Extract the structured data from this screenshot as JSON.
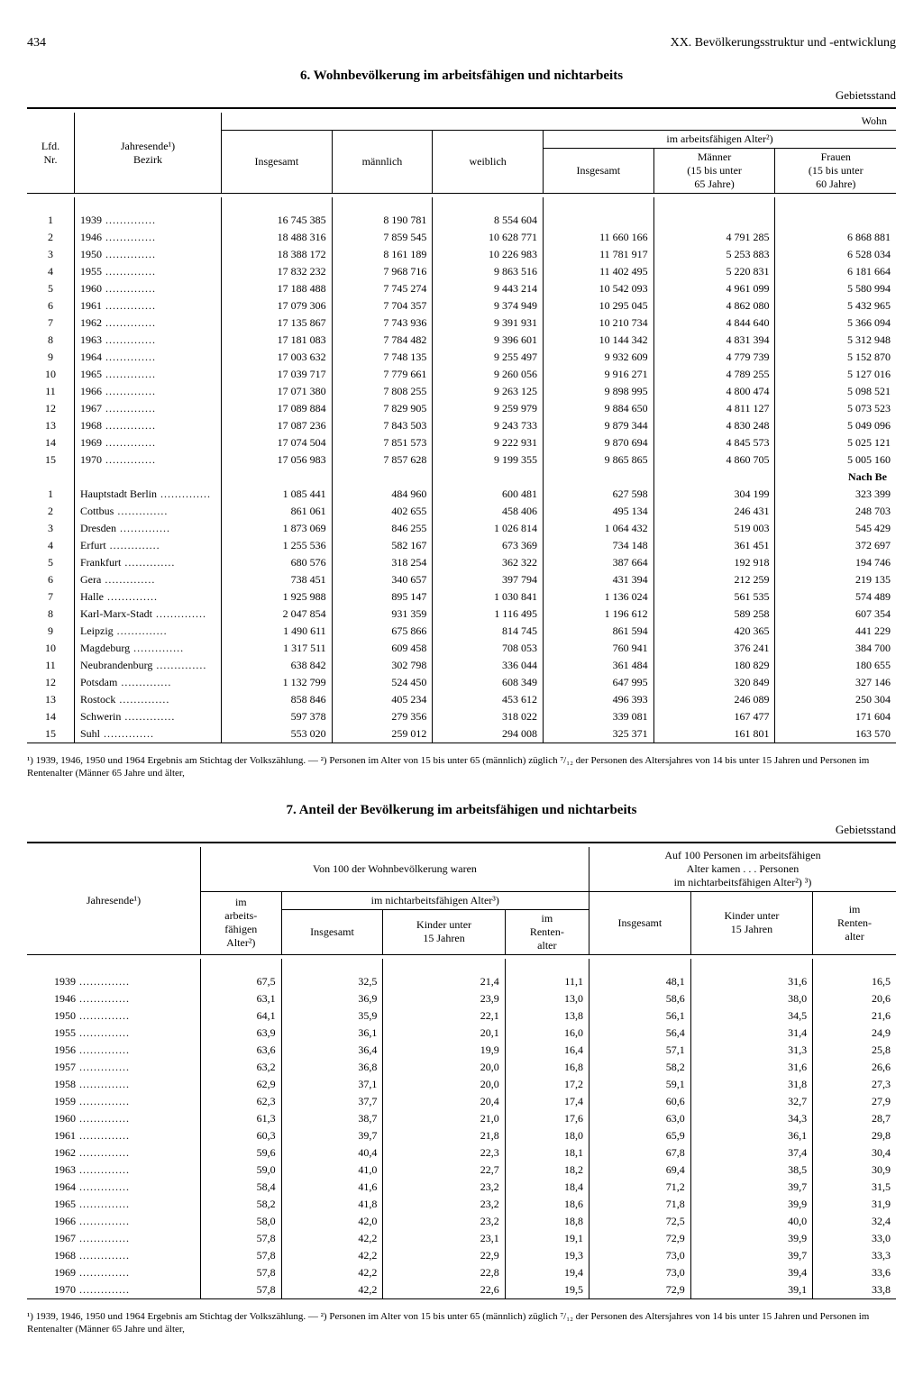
{
  "page": {
    "number": "434",
    "chapter": "XX. Bevölkerungsstruktur und -entwicklung"
  },
  "table6": {
    "title": "6. Wohnbevölkerung im arbeitsfähigen und nichtarbeits",
    "subtitle": "Gebietsstand",
    "corner_right": "Wohn",
    "headers": {
      "lfd": "Lfd.\nNr.",
      "jahr": "Jahresende¹)\nBezirk",
      "insgesamt": "Insgesamt",
      "maennlich": "männlich",
      "weiblich": "weiblich",
      "group": "im arbeitsfähigen Alter²)",
      "g_insgesamt": "Insgesamt",
      "g_maenner": "Männer\n(15 bis unter\n65 Jahre)",
      "g_frauen": "Frauen\n(15 bis unter\n60 Jahre)"
    },
    "years": [
      {
        "n": "1",
        "y": "1939",
        "c1": "16 745 385",
        "c2": "8 190 781",
        "c3": "8 554 604",
        "c4": "",
        "c5": "",
        "c6": ""
      },
      {
        "n": "2",
        "y": "1946",
        "c1": "18 488 316",
        "c2": "7 859 545",
        "c3": "10 628 771",
        "c4": "11 660 166",
        "c5": "4 791 285",
        "c6": "6 868 881"
      },
      {
        "n": "3",
        "y": "1950",
        "c1": "18 388 172",
        "c2": "8 161 189",
        "c3": "10 226 983",
        "c4": "11 781 917",
        "c5": "5 253 883",
        "c6": "6 528 034"
      },
      {
        "n": "4",
        "y": "1955",
        "c1": "17 832 232",
        "c2": "7 968 716",
        "c3": "9 863 516",
        "c4": "11 402 495",
        "c5": "5 220 831",
        "c6": "6 181 664"
      },
      {
        "n": "5",
        "y": "1960",
        "c1": "17 188 488",
        "c2": "7 745 274",
        "c3": "9 443 214",
        "c4": "10 542 093",
        "c5": "4 961 099",
        "c6": "5 580 994"
      },
      {
        "n": "6",
        "y": "1961",
        "c1": "17 079 306",
        "c2": "7 704 357",
        "c3": "9 374 949",
        "c4": "10 295 045",
        "c5": "4 862 080",
        "c6": "5 432 965"
      },
      {
        "n": "7",
        "y": "1962",
        "c1": "17 135 867",
        "c2": "7 743 936",
        "c3": "9 391 931",
        "c4": "10 210 734",
        "c5": "4 844 640",
        "c6": "5 366 094"
      },
      {
        "n": "8",
        "y": "1963",
        "c1": "17 181 083",
        "c2": "7 784 482",
        "c3": "9 396 601",
        "c4": "10 144 342",
        "c5": "4 831 394",
        "c6": "5 312 948"
      },
      {
        "n": "9",
        "y": "1964",
        "c1": "17 003 632",
        "c2": "7 748 135",
        "c3": "9 255 497",
        "c4": "9 932 609",
        "c5": "4 779 739",
        "c6": "5 152 870"
      },
      {
        "n": "10",
        "y": "1965",
        "c1": "17 039 717",
        "c2": "7 779 661",
        "c3": "9 260 056",
        "c4": "9 916 271",
        "c5": "4 789 255",
        "c6": "5 127 016"
      },
      {
        "n": "11",
        "y": "1966",
        "c1": "17 071 380",
        "c2": "7 808 255",
        "c3": "9 263 125",
        "c4": "9 898 995",
        "c5": "4 800 474",
        "c6": "5 098 521"
      },
      {
        "n": "12",
        "y": "1967",
        "c1": "17 089 884",
        "c2": "7 829 905",
        "c3": "9 259 979",
        "c4": "9 884 650",
        "c5": "4 811 127",
        "c6": "5 073 523"
      },
      {
        "n": "13",
        "y": "1968",
        "c1": "17 087 236",
        "c2": "7 843 503",
        "c3": "9 243 733",
        "c4": "9 879 344",
        "c5": "4 830 248",
        "c6": "5 049 096"
      },
      {
        "n": "14",
        "y": "1969",
        "c1": "17 074 504",
        "c2": "7 851 573",
        "c3": "9 222 931",
        "c4": "9 870 694",
        "c5": "4 845 573",
        "c6": "5 025 121"
      },
      {
        "n": "15",
        "y": "1970",
        "c1": "17 056 983",
        "c2": "7 857 628",
        "c3": "9 199 355",
        "c4": "9 865 865",
        "c5": "4 860 705",
        "c6": "5 005 160"
      }
    ],
    "section2_label": "Nach Be",
    "bezirke": [
      {
        "n": "1",
        "y": "Hauptstadt Berlin",
        "c1": "1 085 441",
        "c2": "484 960",
        "c3": "600 481",
        "c4": "627 598",
        "c5": "304 199",
        "c6": "323 399"
      },
      {
        "n": "2",
        "y": "Cottbus",
        "c1": "861 061",
        "c2": "402 655",
        "c3": "458 406",
        "c4": "495 134",
        "c5": "246 431",
        "c6": "248 703"
      },
      {
        "n": "3",
        "y": "Dresden",
        "c1": "1 873 069",
        "c2": "846 255",
        "c3": "1 026 814",
        "c4": "1 064 432",
        "c5": "519 003",
        "c6": "545 429"
      },
      {
        "n": "4",
        "y": "Erfurt",
        "c1": "1 255 536",
        "c2": "582 167",
        "c3": "673 369",
        "c4": "734 148",
        "c5": "361 451",
        "c6": "372 697"
      },
      {
        "n": "5",
        "y": "Frankfurt",
        "c1": "680 576",
        "c2": "318 254",
        "c3": "362 322",
        "c4": "387 664",
        "c5": "192 918",
        "c6": "194 746"
      },
      {
        "n": "6",
        "y": "Gera",
        "c1": "738 451",
        "c2": "340 657",
        "c3": "397 794",
        "c4": "431 394",
        "c5": "212 259",
        "c6": "219 135"
      },
      {
        "n": "7",
        "y": "Halle",
        "c1": "1 925 988",
        "c2": "895 147",
        "c3": "1 030 841",
        "c4": "1 136 024",
        "c5": "561 535",
        "c6": "574 489"
      },
      {
        "n": "8",
        "y": "Karl-Marx-Stadt",
        "c1": "2 047 854",
        "c2": "931 359",
        "c3": "1 116 495",
        "c4": "1 196 612",
        "c5": "589 258",
        "c6": "607 354"
      },
      {
        "n": "9",
        "y": "Leipzig",
        "c1": "1 490 611",
        "c2": "675 866",
        "c3": "814 745",
        "c4": "861 594",
        "c5": "420 365",
        "c6": "441 229"
      },
      {
        "n": "10",
        "y": "Magdeburg",
        "c1": "1 317 511",
        "c2": "609 458",
        "c3": "708 053",
        "c4": "760 941",
        "c5": "376 241",
        "c6": "384 700"
      },
      {
        "n": "11",
        "y": "Neubrandenburg",
        "c1": "638 842",
        "c2": "302 798",
        "c3": "336 044",
        "c4": "361 484",
        "c5": "180 829",
        "c6": "180 655"
      },
      {
        "n": "12",
        "y": "Potsdam",
        "c1": "1 132 799",
        "c2": "524 450",
        "c3": "608 349",
        "c4": "647 995",
        "c5": "320 849",
        "c6": "327 146"
      },
      {
        "n": "13",
        "y": "Rostock",
        "c1": "858 846",
        "c2": "405 234",
        "c3": "453 612",
        "c4": "496 393",
        "c5": "246 089",
        "c6": "250 304"
      },
      {
        "n": "14",
        "y": "Schwerin",
        "c1": "597 378",
        "c2": "279 356",
        "c3": "318 022",
        "c4": "339 081",
        "c5": "167 477",
        "c6": "171 604"
      },
      {
        "n": "15",
        "y": "Suhl",
        "c1": "553 020",
        "c2": "259 012",
        "c3": "294 008",
        "c4": "325 371",
        "c5": "161 801",
        "c6": "163 570"
      }
    ],
    "footnote": "¹) 1939, 1946, 1950 und 1964 Ergebnis am Stichtag der Volkszählung. — ²) Personen im Alter von 15 bis unter 65 (männlich) züglich ⁷/₁₂ der Personen des Altersjahres von 14 bis unter 15 Jahren und Personen im Rentenalter (Männer 65 Jahre und älter,"
  },
  "table7": {
    "title": "7. Anteil der Bevölkerung im arbeitsfähigen und nichtarbeits",
    "subtitle": "Gebietsstand",
    "headers": {
      "jahr": "Jahresende¹)",
      "g1": "Von 100 der Wohnbevölkerung waren",
      "g1a": "im\narbeits-\nfähigen\nAlter²)",
      "g1b": "im nichtarbeitsfähigen Alter³)",
      "g2": "Auf 100 Personen im arbeitsfähigen\nAlter kamen . . . Personen\nim nichtarbeitsfähigen Alter²) ³)",
      "insgesamt": "Insgesamt",
      "kinder": "Kinder unter\n15 Jahren",
      "renten": "im\nRenten-\nalter"
    },
    "rows": [
      {
        "y": "1939",
        "c1": "67,5",
        "c2": "32,5",
        "c3": "21,4",
        "c4": "11,1",
        "c5": "48,1",
        "c6": "31,6",
        "c7": "16,5"
      },
      {
        "y": "1946",
        "c1": "63,1",
        "c2": "36,9",
        "c3": "23,9",
        "c4": "13,0",
        "c5": "58,6",
        "c6": "38,0",
        "c7": "20,6"
      },
      {
        "y": "1950",
        "c1": "64,1",
        "c2": "35,9",
        "c3": "22,1",
        "c4": "13,8",
        "c5": "56,1",
        "c6": "34,5",
        "c7": "21,6"
      },
      {
        "y": "1955",
        "c1": "63,9",
        "c2": "36,1",
        "c3": "20,1",
        "c4": "16,0",
        "c5": "56,4",
        "c6": "31,4",
        "c7": "24,9"
      },
      {
        "y": "1956",
        "c1": "63,6",
        "c2": "36,4",
        "c3": "19,9",
        "c4": "16,4",
        "c5": "57,1",
        "c6": "31,3",
        "c7": "25,8"
      },
      {
        "y": "1957",
        "c1": "63,2",
        "c2": "36,8",
        "c3": "20,0",
        "c4": "16,8",
        "c5": "58,2",
        "c6": "31,6",
        "c7": "26,6"
      },
      {
        "y": "1958",
        "c1": "62,9",
        "c2": "37,1",
        "c3": "20,0",
        "c4": "17,2",
        "c5": "59,1",
        "c6": "31,8",
        "c7": "27,3"
      },
      {
        "y": "1959",
        "c1": "62,3",
        "c2": "37,7",
        "c3": "20,4",
        "c4": "17,4",
        "c5": "60,6",
        "c6": "32,7",
        "c7": "27,9"
      },
      {
        "y": "1960",
        "c1": "61,3",
        "c2": "38,7",
        "c3": "21,0",
        "c4": "17,6",
        "c5": "63,0",
        "c6": "34,3",
        "c7": "28,7"
      },
      {
        "y": "1961",
        "c1": "60,3",
        "c2": "39,7",
        "c3": "21,8",
        "c4": "18,0",
        "c5": "65,9",
        "c6": "36,1",
        "c7": "29,8"
      },
      {
        "y": "1962",
        "c1": "59,6",
        "c2": "40,4",
        "c3": "22,3",
        "c4": "18,1",
        "c5": "67,8",
        "c6": "37,4",
        "c7": "30,4"
      },
      {
        "y": "1963",
        "c1": "59,0",
        "c2": "41,0",
        "c3": "22,7",
        "c4": "18,2",
        "c5": "69,4",
        "c6": "38,5",
        "c7": "30,9"
      },
      {
        "y": "1964",
        "c1": "58,4",
        "c2": "41,6",
        "c3": "23,2",
        "c4": "18,4",
        "c5": "71,2",
        "c6": "39,7",
        "c7": "31,5"
      },
      {
        "y": "1965",
        "c1": "58,2",
        "c2": "41,8",
        "c3": "23,2",
        "c4": "18,6",
        "c5": "71,8",
        "c6": "39,9",
        "c7": "31,9"
      },
      {
        "y": "1966",
        "c1": "58,0",
        "c2": "42,0",
        "c3": "23,2",
        "c4": "18,8",
        "c5": "72,5",
        "c6": "40,0",
        "c7": "32,4"
      },
      {
        "y": "1967",
        "c1": "57,8",
        "c2": "42,2",
        "c3": "23,1",
        "c4": "19,1",
        "c5": "72,9",
        "c6": "39,9",
        "c7": "33,0"
      },
      {
        "y": "1968",
        "c1": "57,8",
        "c2": "42,2",
        "c3": "22,9",
        "c4": "19,3",
        "c5": "73,0",
        "c6": "39,7",
        "c7": "33,3"
      },
      {
        "y": "1969",
        "c1": "57,8",
        "c2": "42,2",
        "c3": "22,8",
        "c4": "19,4",
        "c5": "73,0",
        "c6": "39,4",
        "c7": "33,6"
      },
      {
        "y": "1970",
        "c1": "57,8",
        "c2": "42,2",
        "c3": "22,6",
        "c4": "19,5",
        "c5": "72,9",
        "c6": "39,1",
        "c7": "33,8"
      }
    ],
    "footnote": "¹) 1939, 1946, 1950 und 1964 Ergebnis am Stichtag der Volkszählung. — ²) Personen im Alter von 15 bis unter 65 (männlich) züglich ⁷/₁₂ der Personen des Altersjahres von 14 bis unter 15 Jahren und Personen im Rentenalter (Männer 65 Jahre und älter,"
  }
}
